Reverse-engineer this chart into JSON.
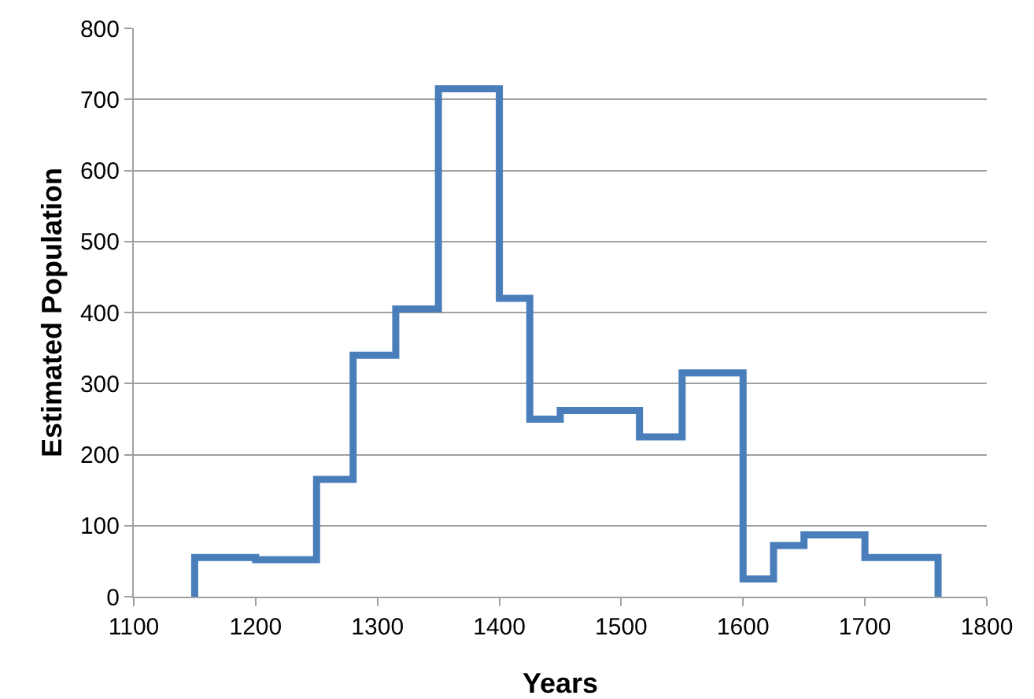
{
  "chart_data": {
    "type": "step",
    "xlabel": "Years",
    "ylabel": "Estimated Population",
    "x": [
      1150,
      1150,
      1200,
      1250,
      1280,
      1315,
      1350,
      1400,
      1425,
      1450,
      1515,
      1550,
      1600,
      1625,
      1650,
      1700,
      1760
    ],
    "series": [
      {
        "color": "#4a7ebb",
        "values": [
          0,
          55,
          52,
          165,
          340,
          405,
          715,
          420,
          250,
          262,
          225,
          315,
          25,
          72,
          87,
          55,
          0
        ]
      }
    ],
    "xlim": [
      1100,
      1800
    ],
    "xticks": [
      1100,
      1200,
      1300,
      1400,
      1500,
      1600,
      1700,
      1800
    ],
    "ylim": [
      0,
      800
    ],
    "yticks": [
      0,
      100,
      200,
      300,
      400,
      500,
      600,
      700,
      800
    ],
    "grid": "y",
    "marker": "none",
    "line_style": "solid"
  }
}
